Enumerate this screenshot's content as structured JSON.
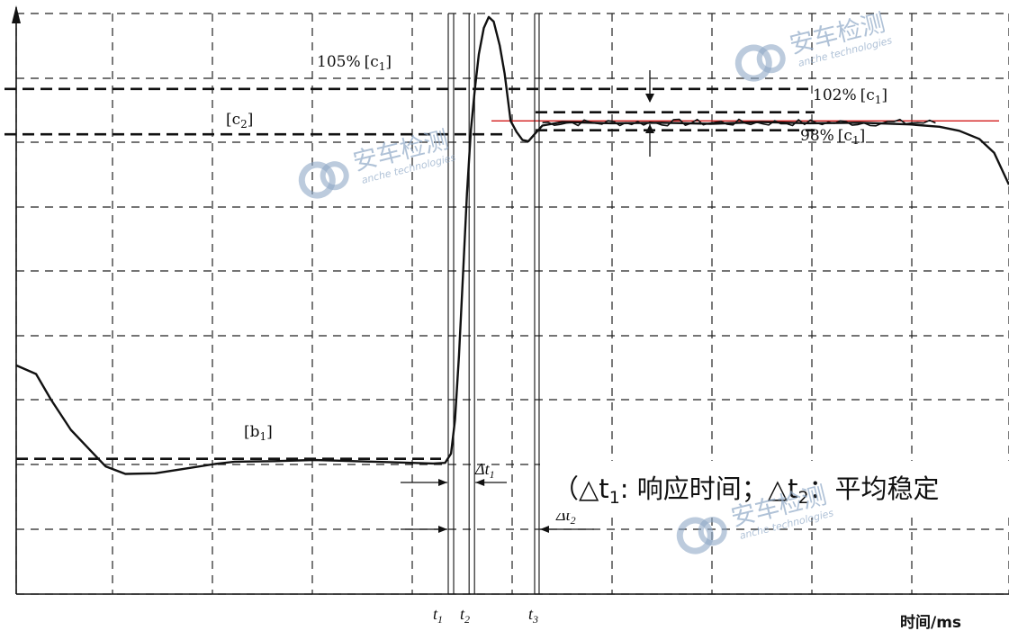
{
  "chart_data": {
    "type": "line",
    "title": "",
    "xlabel": "时间/ms",
    "ylabel": "",
    "grid": true,
    "xlim": [
      0,
      100
    ],
    "ylim": [
      0,
      100
    ],
    "series": [
      {
        "color": "#111111",
        "points": [
          [
            0,
            39.4
          ],
          [
            2,
            37.9
          ],
          [
            3.5,
            33.5
          ],
          [
            5.5,
            28.3
          ],
          [
            7.5,
            24.7
          ],
          [
            9,
            22.0
          ],
          [
            11,
            20.7
          ],
          [
            14,
            20.8
          ],
          [
            17,
            21.6
          ],
          [
            20,
            22.4
          ],
          [
            22,
            22.8
          ],
          [
            26,
            22.9
          ],
          [
            30,
            23.1
          ],
          [
            34,
            22.9
          ],
          [
            38,
            22.7
          ],
          [
            42,
            22.5
          ],
          [
            44,
            22.6
          ],
          [
            42,
            22.6
          ]
        ],
        "clean_points": [
          [
            0,
            39.4
          ],
          [
            2,
            37.9
          ],
          [
            3.5,
            33.5
          ],
          [
            5.5,
            28.3
          ],
          [
            7.5,
            24.7
          ],
          [
            9,
            22.0
          ],
          [
            11,
            20.7
          ],
          [
            14,
            20.8
          ],
          [
            17,
            21.6
          ],
          [
            20,
            22.4
          ],
          [
            22,
            22.8
          ],
          [
            26,
            22.9
          ],
          [
            30,
            23.1
          ],
          [
            34,
            22.9
          ],
          [
            38,
            22.7
          ],
          [
            42,
            22.5
          ],
          [
            43.2,
            22.6
          ],
          [
            43.8,
            24.2
          ],
          [
            44.2,
            30
          ],
          [
            44.6,
            41
          ],
          [
            45.0,
            55
          ],
          [
            45.4,
            69
          ],
          [
            45.8,
            80
          ],
          [
            46.2,
            87
          ],
          [
            46.6,
            93
          ],
          [
            47.1,
            97.5
          ],
          [
            47.6,
            99.4
          ],
          [
            48.1,
            98.6
          ],
          [
            48.7,
            94.5
          ],
          [
            49.2,
            89.6
          ],
          [
            49.8,
            81.5
          ],
          [
            50.4,
            79.6
          ],
          [
            51.0,
            78.2
          ],
          [
            51.6,
            78.0
          ],
          [
            52.2,
            79.2
          ],
          [
            53.0,
            80.7
          ],
          [
            55,
            81.3
          ],
          [
            60,
            81.1
          ],
          [
            65,
            81.2
          ],
          [
            70,
            81.0
          ],
          [
            75,
            81.3
          ],
          [
            80,
            81.1
          ],
          [
            85,
            81.2
          ],
          [
            90,
            80.9
          ],
          [
            93,
            80.5
          ],
          [
            95,
            79.8
          ],
          [
            97,
            78.4
          ],
          [
            98.5,
            76.0
          ],
          [
            100,
            70.5
          ]
        ]
      }
    ],
    "reference_lines": [
      {
        "label": "105%[c1]",
        "y": 87.0,
        "style": "dashed"
      },
      {
        "label": "[c2]",
        "y": 79.2,
        "style": "dashed"
      },
      {
        "label": "102%[c1]",
        "y": 83.0,
        "style": "dashed"
      },
      {
        "label": "98%[c1]",
        "y": 79.9,
        "style": "dashed"
      },
      {
        "label": "[b1]",
        "y": 23.3,
        "style": "dashed"
      }
    ],
    "average_line": {
      "y": 81.5,
      "color": "#d21b1b"
    },
    "time_markers": [
      {
        "label": "t1",
        "x": 43.7
      },
      {
        "label": "t2",
        "x": 45.8
      },
      {
        "label": "t3",
        "x": 52.4
      }
    ],
    "intervals": [
      {
        "label": "Δt1",
        "from": "t1",
        "to": "t2"
      },
      {
        "label": "Δt2",
        "from": "t1",
        "to": "t3"
      }
    ]
  },
  "labels": {
    "ref_105": "105%",
    "ref_c2": "[c",
    "ref_102": "102%",
    "ref_98": "98%",
    "ref_b1": "[b",
    "c1_bracket": "[c",
    "sub1": "1",
    "sub2": "2",
    "close": "]",
    "t1": "t",
    "t2": "t",
    "t3": "t",
    "dt": "Δt",
    "xlabel": "时间/ms"
  },
  "note": {
    "part1": "（△t",
    "sub1": "1",
    "part2": ": 响应时间；△t",
    "sub2": "2",
    "part3": "：平均稳定"
  },
  "watermark": {
    "cn": "安车检测",
    "en": "anche technologies"
  }
}
